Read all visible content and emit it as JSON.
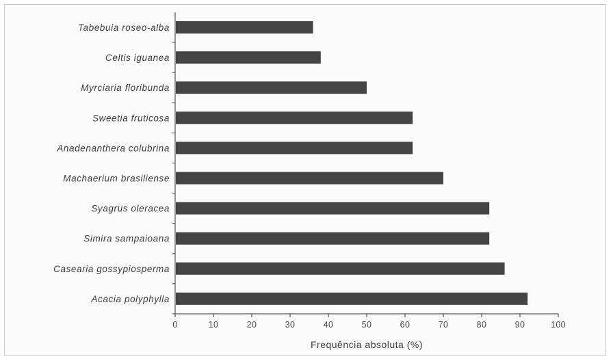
{
  "chart_data": {
    "type": "bar",
    "orientation": "horizontal",
    "title": "",
    "xlabel": "Frequência absoluta (%)",
    "ylabel": "",
    "xlim": [
      0,
      100
    ],
    "xticks": [
      "0",
      "10",
      "20",
      "30",
      "40",
      "50",
      "60",
      "70",
      "80",
      "90",
      "100"
    ],
    "categories": [
      "Tabebuia roseo-alba",
      "Celtis iguanea",
      "Myrciaria floribunda",
      "Sweetia fruticosa",
      "Anadenanthera colubrina",
      "Machaerium brasiliense",
      "Syagrus oleracea",
      "Simira sampaioana",
      "Casearia gossypiosperma",
      "Acacia polyphylla"
    ],
    "values": [
      36,
      38,
      50,
      62,
      62,
      70,
      82,
      82,
      86,
      92
    ],
    "grid": false,
    "legend": "none",
    "bar_color": "#444444"
  }
}
